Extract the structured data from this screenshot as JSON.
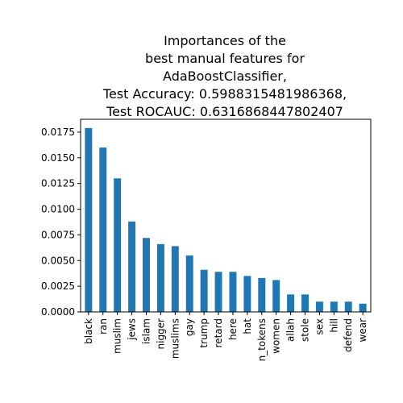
{
  "chart_data": {
    "type": "bar",
    "title_lines": [
      "Importances of the",
      "best manual features for",
      "AdaBoostClassifier,",
      "Test Accuracy: 0.5988315481986368,",
      "Test ROCAUC: 0.6316868447802407"
    ],
    "xlabel": "",
    "ylabel": "",
    "categories": [
      "black",
      "ran",
      "muslim",
      "jews",
      "islam",
      "nigger",
      "muslims",
      "gay",
      "trump",
      "retard",
      "here",
      "hat",
      "n_tokens",
      "women",
      "allah",
      "stole",
      "sex",
      "hill",
      "defend",
      "wear"
    ],
    "values": [
      0.0179,
      0.016,
      0.013,
      0.0088,
      0.0072,
      0.0066,
      0.0064,
      0.0055,
      0.0041,
      0.0039,
      0.0039,
      0.0035,
      0.0033,
      0.0031,
      0.0017,
      0.0017,
      0.001,
      0.001,
      0.001,
      0.0008
    ],
    "yticks": [
      "0.0000",
      "0.0025",
      "0.0050",
      "0.0075",
      "0.0100",
      "0.0125",
      "0.0150",
      "0.0175"
    ],
    "ylim": [
      0,
      0.01875
    ],
    "grid": false,
    "bar_color": "#1f77b4"
  }
}
